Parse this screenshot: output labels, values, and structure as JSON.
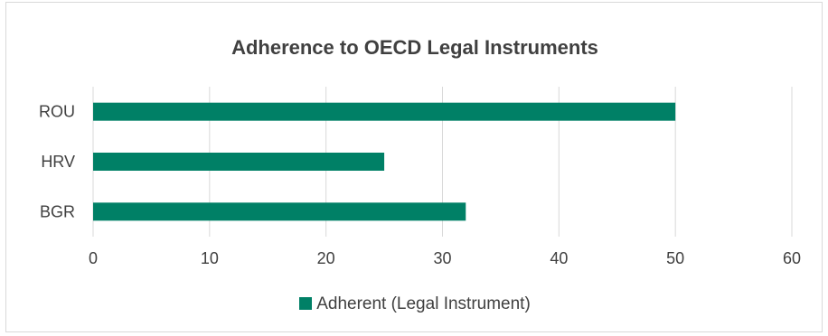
{
  "chart_data": {
    "type": "bar",
    "orientation": "horizontal",
    "title": "Adherence to OECD Legal Instruments",
    "categories": [
      "BGR",
      "HRV",
      "ROU"
    ],
    "series": [
      {
        "name": "Adherent (Legal Instrument)",
        "values": [
          32,
          25,
          50
        ],
        "color": "#008066"
      }
    ],
    "xlim": [
      0,
      60
    ],
    "xticks": [
      0,
      10,
      20,
      30,
      40,
      50,
      60
    ],
    "xlabel": "",
    "ylabel": "",
    "grid": true,
    "legend": "bottom"
  }
}
